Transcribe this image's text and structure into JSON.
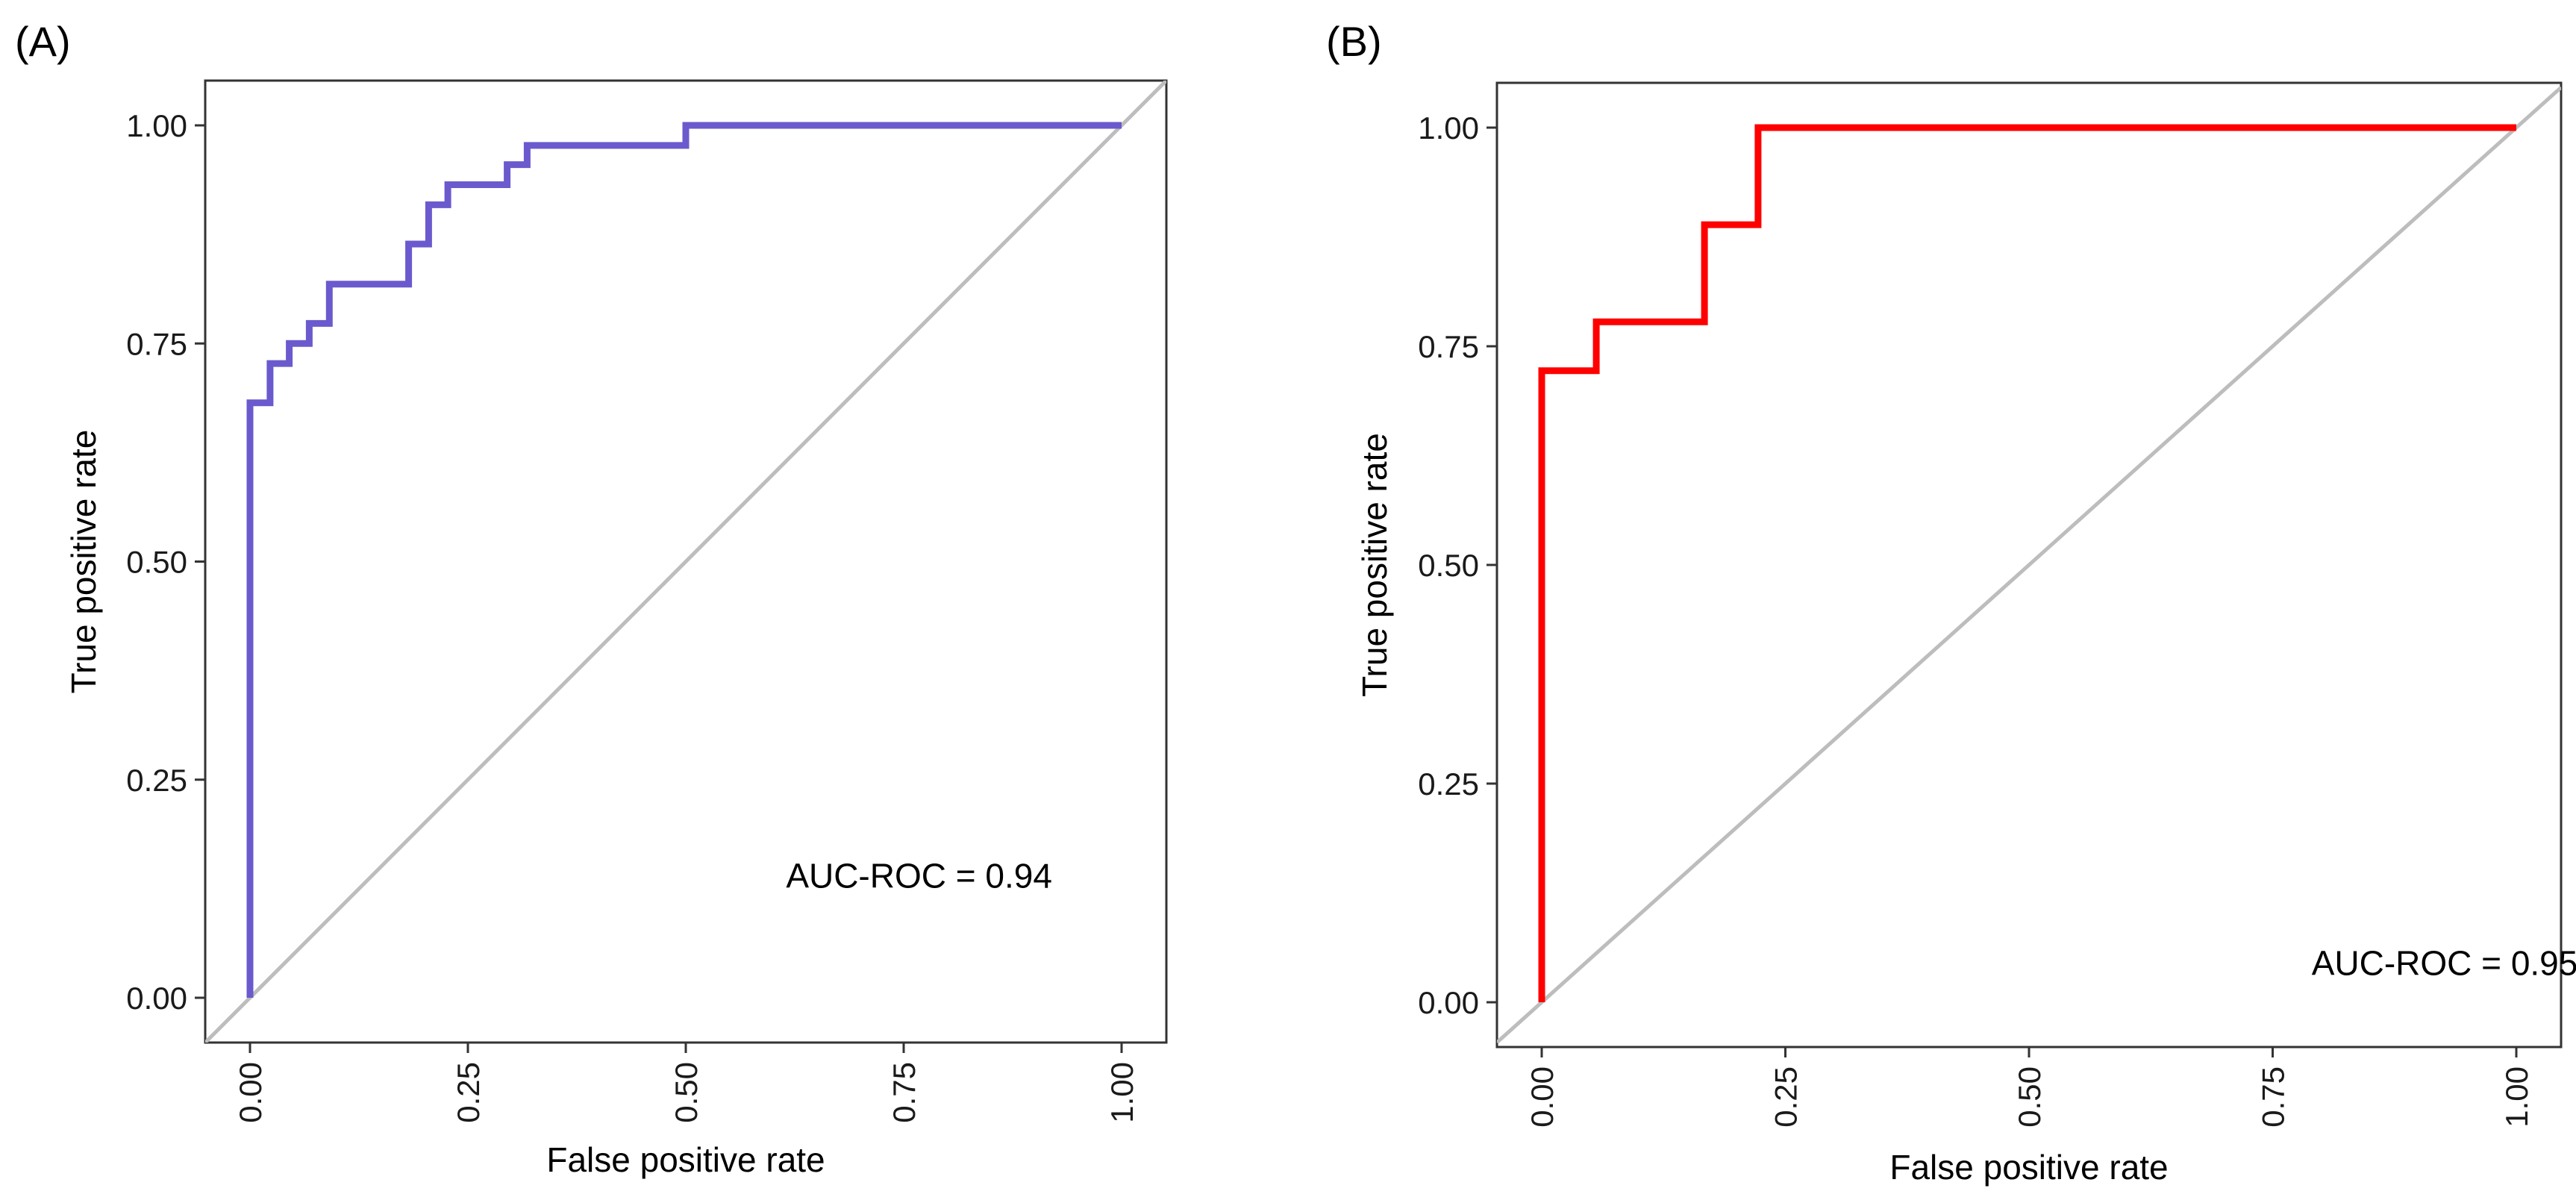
{
  "chart_data": [
    {
      "type": "line",
      "panel_label": "(A)",
      "xlabel": "False positive rate",
      "ylabel": "True positive rate",
      "xlim": [
        0,
        1
      ],
      "ylim": [
        0,
        1
      ],
      "xticks": [
        0,
        0.25,
        0.5,
        0.75,
        1
      ],
      "xtick_labels": [
        "0.00",
        "0.25",
        "0.50",
        "0.75",
        "1.00"
      ],
      "yticks": [
        0,
        0.25,
        0.5,
        0.75,
        1
      ],
      "ytick_labels": [
        "0.00",
        "0.25",
        "0.50",
        "0.75",
        "1.00"
      ],
      "annotation": "AUC-ROC = 0.94",
      "annotation_pos": [
        0.615,
        0.14
      ],
      "series": [
        {
          "name": "ROC",
          "color": "#6a5acd",
          "x": [
            0,
            0,
            0.023,
            0.023,
            0.045,
            0.045,
            0.068,
            0.068,
            0.091,
            0.091,
            0.182,
            0.182,
            0.205,
            0.205,
            0.227,
            0.227,
            0.295,
            0.295,
            0.318,
            0.318,
            0.5,
            0.5,
            1.0
          ],
          "y": [
            0,
            0.682,
            0.682,
            0.727,
            0.727,
            0.75,
            0.75,
            0.773,
            0.773,
            0.818,
            0.818,
            0.864,
            0.864,
            0.909,
            0.909,
            0.932,
            0.932,
            0.955,
            0.955,
            0.977,
            0.977,
            1.0,
            1.0
          ]
        },
        {
          "name": "reference",
          "color": "#bdbdbd",
          "x": [
            0,
            1
          ],
          "y": [
            0,
            1
          ]
        }
      ]
    },
    {
      "type": "line",
      "panel_label": "(B)",
      "xlabel": "False positive rate",
      "ylabel": "True positive rate",
      "xlim": [
        0,
        1
      ],
      "ylim": [
        0,
        1
      ],
      "xticks": [
        0,
        0.25,
        0.5,
        0.75,
        1
      ],
      "xtick_labels": [
        "0.00",
        "0.25",
        "0.50",
        "0.75",
        "1.00"
      ],
      "yticks": [
        0,
        0.25,
        0.5,
        0.75,
        1
      ],
      "ytick_labels": [
        "0.00",
        "0.25",
        "0.50",
        "0.75",
        "1.00"
      ],
      "annotation": "AUC-ROC = 0.95",
      "annotation_pos": [
        0.79,
        0.045
      ],
      "series": [
        {
          "name": "ROC",
          "color": "#ff0000",
          "x": [
            0,
            0,
            0.056,
            0.056,
            0.167,
            0.167,
            0.222,
            0.222,
            1.0
          ],
          "y": [
            0,
            0.722,
            0.722,
            0.778,
            0.778,
            0.889,
            0.889,
            1.0,
            1.0
          ]
        },
        {
          "name": "reference",
          "color": "#bdbdbd",
          "x": [
            0,
            1
          ],
          "y": [
            0,
            1
          ]
        }
      ]
    }
  ]
}
